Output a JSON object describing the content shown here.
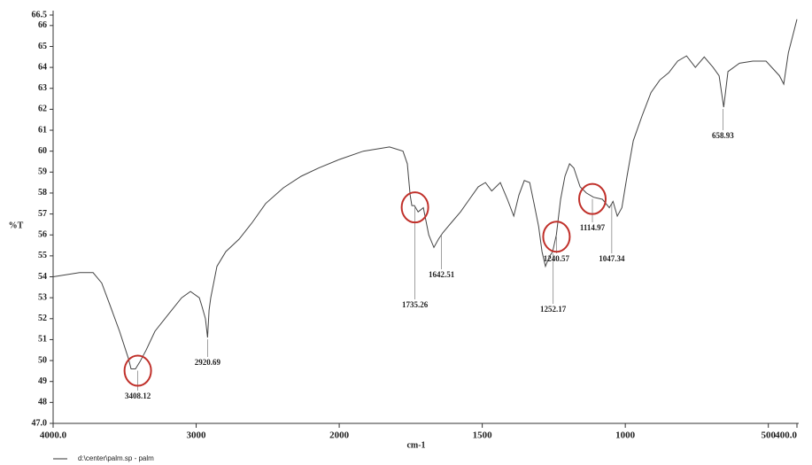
{
  "chart_data": {
    "type": "line",
    "xlabel": "cm-1",
    "ylabel": "%T",
    "legend_text": "d:\\center\\palm.sp - palm",
    "color": "#444444",
    "xlim": [
      4000,
      400
    ],
    "scale_change": {
      "at": 2000,
      "factor": 2
    },
    "ylim": [
      47,
      66.5
    ],
    "xticks": [
      {
        "value": 4000,
        "label": "4000.0"
      },
      3000,
      2000,
      1500,
      1000,
      500,
      {
        "value": 400,
        "label": "400.0"
      }
    ],
    "yticks": [
      {
        "value": 47,
        "label": "47.0"
      },
      48,
      49,
      50,
      51,
      52,
      53,
      54,
      55,
      56,
      57,
      58,
      59,
      60,
      61,
      62,
      63,
      64,
      65,
      66,
      {
        "value": 66.5,
        "label": "66.5"
      }
    ],
    "x": [
      4000,
      3814,
      3721,
      3660,
      3600,
      3536,
      3474,
      3455,
      3424,
      3393,
      3350,
      3288,
      3195,
      3102,
      3040,
      2978,
      2960,
      2935,
      2920.69,
      2910,
      2898,
      2855,
      2793,
      2700,
      2607,
      2514,
      2390,
      2266,
      2142,
      2000,
      1916,
      1824,
      1777,
      1762,
      1752,
      1746,
      1737,
      1724,
      1706,
      1687,
      1669,
      1653,
      1638,
      1607,
      1576,
      1545,
      1514,
      1489,
      1467,
      1437,
      1412,
      1390,
      1372,
      1353,
      1334,
      1319,
      1303,
      1291,
      1279,
      1266,
      1254,
      1241,
      1226,
      1211,
      1195,
      1180,
      1158,
      1136,
      1111,
      1080,
      1056,
      1043,
      1028,
      1012,
      994,
      972,
      941,
      910,
      879,
      848,
      817,
      786,
      755,
      724,
      693,
      672,
      656,
      641,
      601,
      554,
      508,
      461,
      446,
      430,
      415,
      400
    ],
    "values": [
      54.0,
      54.2,
      54.2,
      53.7,
      52.6,
      51.4,
      50.1,
      49.6,
      49.6,
      49.95,
      50.5,
      51.4,
      52.2,
      53.0,
      53.3,
      53.0,
      52.6,
      52.0,
      51.1,
      52.4,
      53.0,
      54.5,
      55.2,
      55.8,
      56.6,
      57.5,
      58.25,
      58.8,
      59.2,
      59.6,
      60.0,
      60.2,
      60.0,
      59.4,
      57.9,
      57.4,
      57.4,
      57.1,
      57.3,
      56.0,
      55.4,
      55.8,
      56.1,
      56.6,
      57.1,
      57.7,
      58.3,
      58.5,
      58.1,
      58.5,
      57.7,
      56.9,
      57.9,
      58.6,
      58.5,
      57.5,
      56.4,
      55.2,
      54.5,
      54.95,
      55.2,
      56.0,
      57.7,
      58.8,
      59.4,
      59.2,
      58.3,
      58.0,
      57.8,
      57.7,
      57.3,
      57.6,
      56.9,
      57.3,
      58.8,
      60.5,
      61.7,
      62.8,
      63.4,
      63.75,
      64.3,
      64.55,
      64.0,
      64.5,
      64.0,
      63.6,
      62.1,
      63.8,
      64.2,
      64.3,
      64.3,
      63.6,
      63.2,
      64.7,
      65.5,
      66.3
    ],
    "peaks": [
      {
        "x": 3408.12,
        "y": 49.6,
        "circled": true
      },
      {
        "x": 2920.69,
        "y": 51.1,
        "circled": false
      },
      {
        "x": 1735.26,
        "y": 57.4,
        "circled": true
      },
      {
        "x": 1642.51,
        "y": 56.1,
        "circled": false
      },
      {
        "x": 1252.17,
        "y": 55.2,
        "circled": false
      },
      {
        "x": 1240.57,
        "y": 56.0,
        "circled": true
      },
      {
        "x": 1114.97,
        "y": 57.8,
        "circled": true
      },
      {
        "x": 1047.34,
        "y": 57.6,
        "circled": false
      },
      {
        "x": 658.93,
        "y": 62.1,
        "circled": false
      }
    ]
  }
}
